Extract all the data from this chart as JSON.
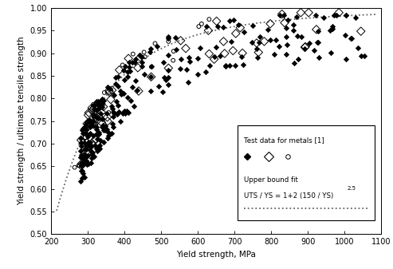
{
  "title": "",
  "xlabel": "Yield strength, MPa",
  "ylabel": "Yield strength / ultimate tensile strength",
  "xlim": [
    200,
    1100
  ],
  "ylim": [
    0.5,
    1.0
  ],
  "xticks": [
    200,
    300,
    400,
    500,
    600,
    700,
    800,
    900,
    1000,
    1100
  ],
  "yticks": [
    0.5,
    0.55,
    0.6,
    0.65,
    0.7,
    0.75,
    0.8,
    0.85,
    0.9,
    0.95,
    1.0
  ],
  "background_color": "#ffffff",
  "curve_color": "#666666"
}
